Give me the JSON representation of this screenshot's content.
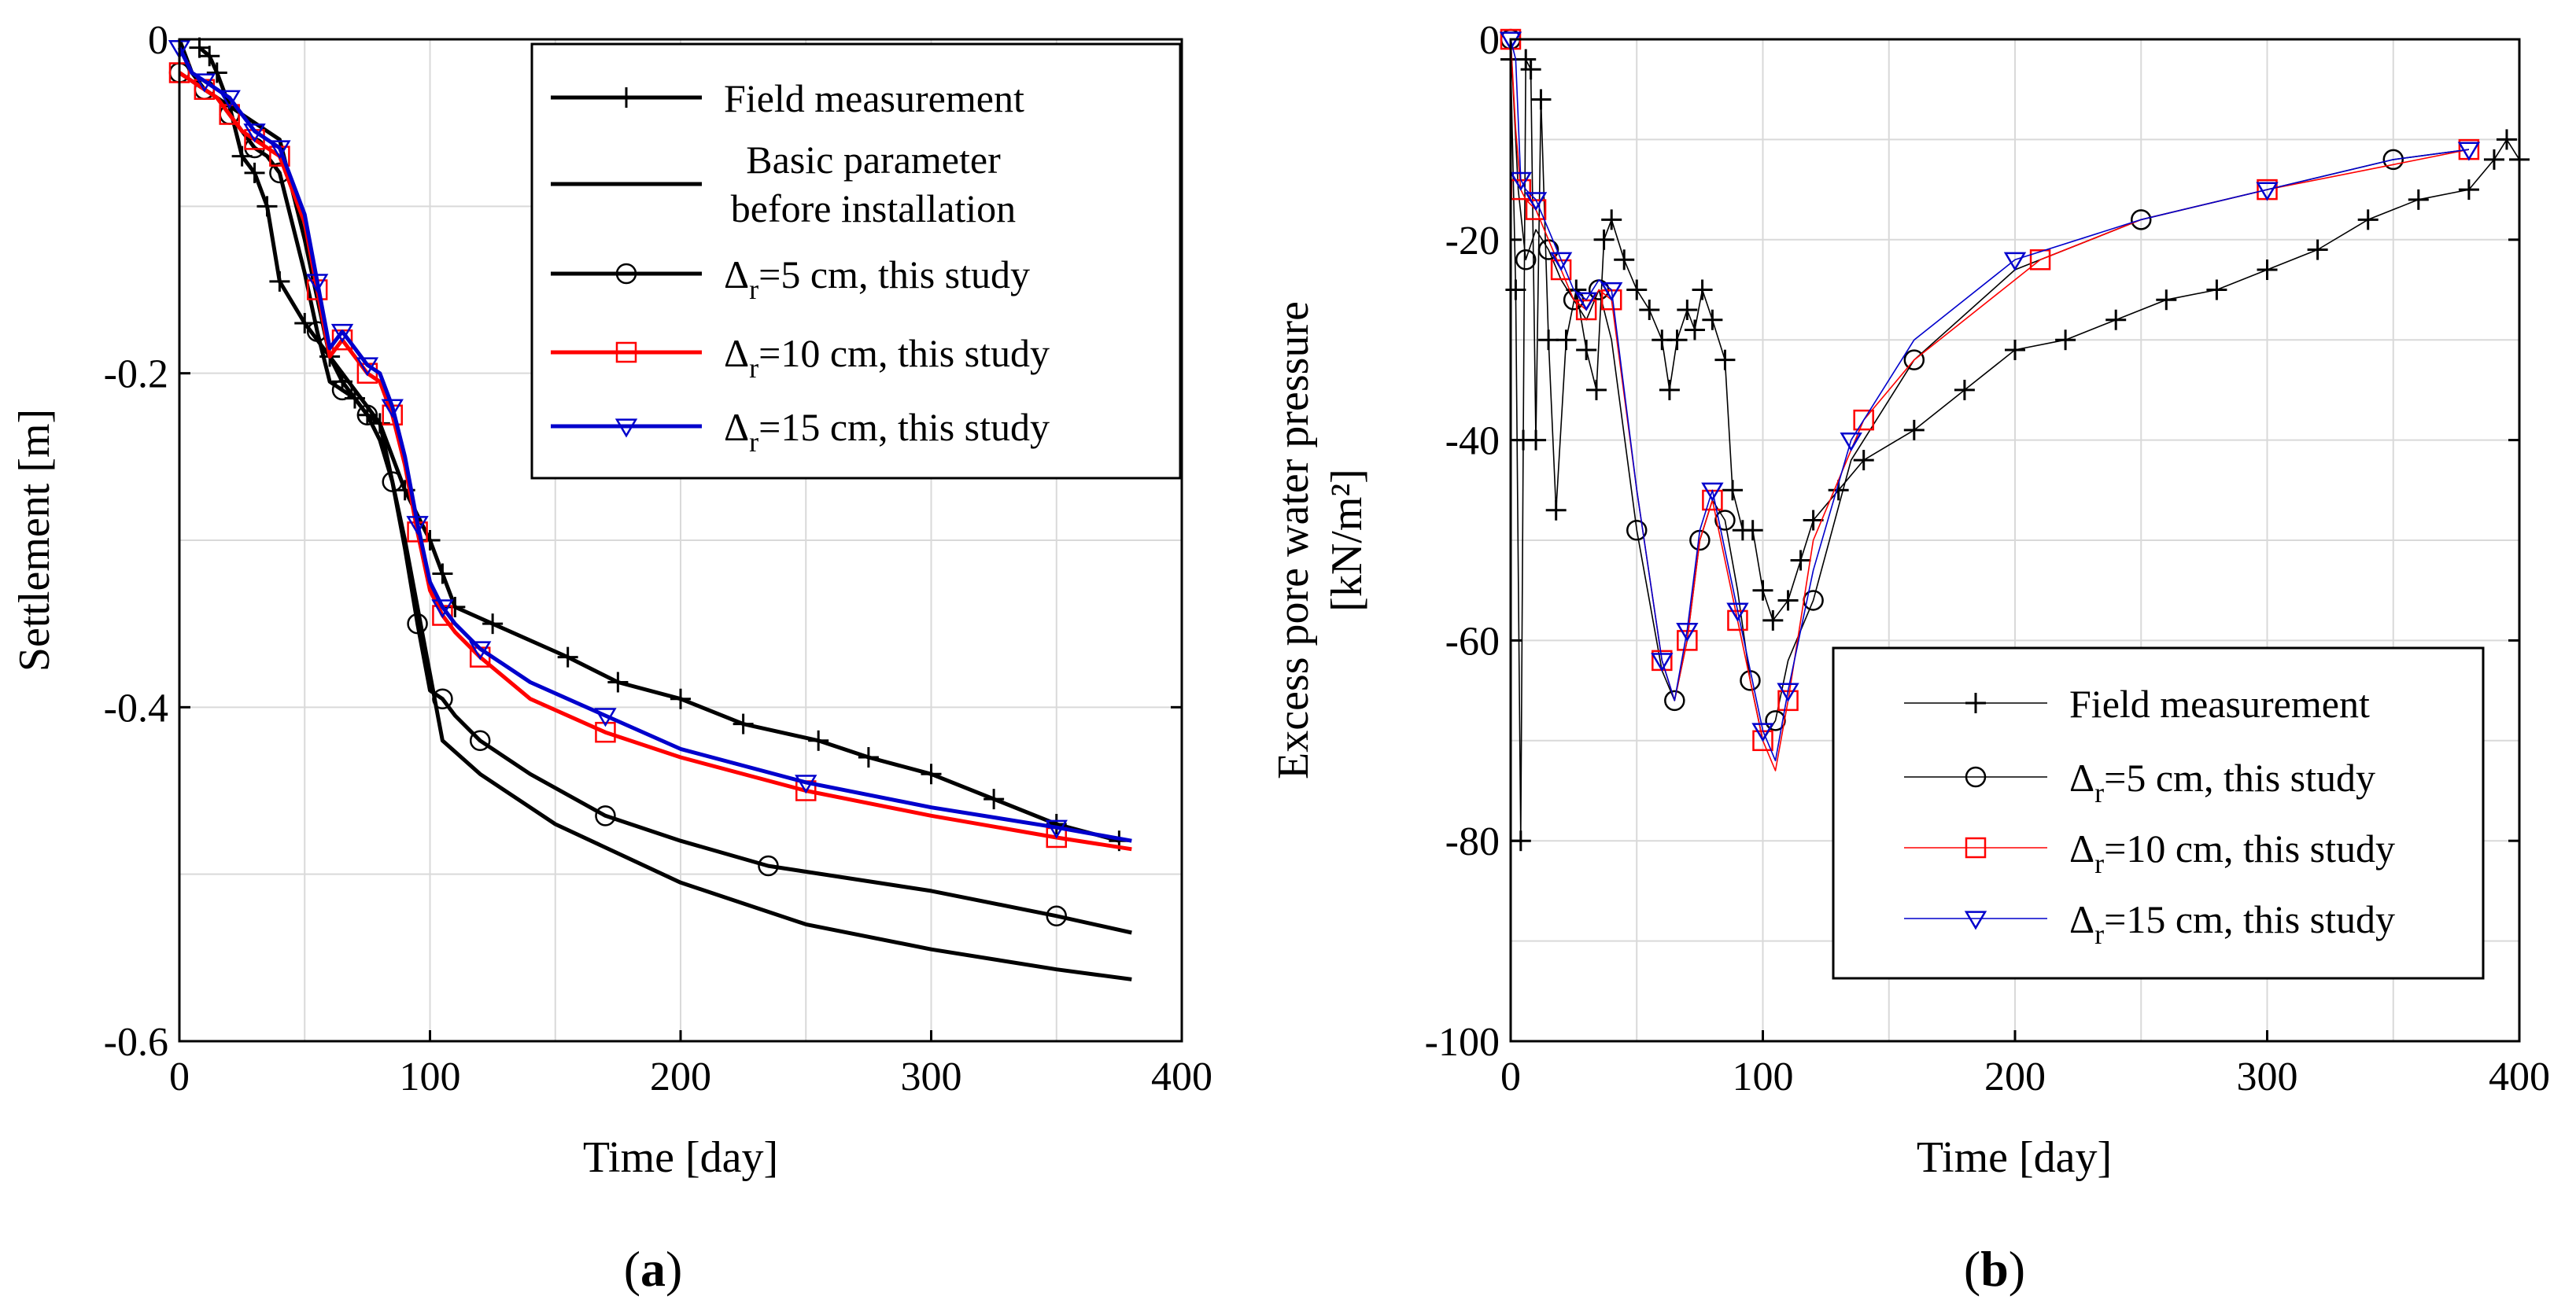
{
  "chart_data": [
    {
      "type": "line",
      "panel_label": "a",
      "xlabel": "Time [day]",
      "ylabel": "Settlement [m]",
      "xlim": [
        0,
        400
      ],
      "ylim": [
        -0.6,
        0
      ],
      "xticks": [
        "0",
        "100",
        "200",
        "300",
        "400"
      ],
      "yticks": [
        "0",
        "-0.2",
        "-0.4",
        "-0.6"
      ],
      "grid": true,
      "legend_position": "top-right",
      "legend_labels": {
        "field": "Field measurement",
        "basic_1": "Basic parameter",
        "basic_2": "before installation",
        "d5": "=5 cm, this study",
        "d10": "=10 cm, this study",
        "d15": "=15 cm, this study"
      },
      "delta_symbol": "Δ",
      "delta_sub": "r",
      "series": [
        {
          "key": "field",
          "color": "#000000",
          "marker": "plus",
          "x": [
            8,
            12,
            15,
            20,
            25,
            30,
            35,
            40,
            50,
            60,
            65,
            70,
            75,
            80,
            90,
            100,
            105,
            110,
            125,
            155,
            175,
            200,
            225,
            255,
            275,
            300,
            325,
            350,
            375
          ],
          "y": [
            -0.005,
            -0.01,
            -0.02,
            -0.04,
            -0.07,
            -0.08,
            -0.1,
            -0.145,
            -0.17,
            -0.19,
            -0.205,
            -0.215,
            -0.225,
            -0.23,
            -0.27,
            -0.3,
            -0.32,
            -0.34,
            -0.35,
            -0.37,
            -0.385,
            -0.395,
            -0.41,
            -0.42,
            -0.43,
            -0.44,
            -0.455,
            -0.47,
            -0.48
          ]
        },
        {
          "key": "basic",
          "color": "#000000",
          "marker": "none",
          "x": [
            0,
            5,
            10,
            20,
            30,
            40,
            50,
            60,
            70,
            80,
            90,
            100,
            105,
            120,
            150,
            200,
            250,
            300,
            350,
            380
          ],
          "y": [
            0,
            -0.02,
            -0.03,
            -0.04,
            -0.05,
            -0.06,
            -0.12,
            -0.19,
            -0.21,
            -0.23,
            -0.3,
            -0.38,
            -0.42,
            -0.44,
            -0.47,
            -0.505,
            -0.53,
            -0.545,
            -0.557,
            -0.563
          ]
        },
        {
          "key": "d5",
          "color": "#000000",
          "marker": "circle",
          "x": [
            0,
            5,
            10,
            15,
            20,
            25,
            30,
            35,
            40,
            50,
            55,
            60,
            65,
            70,
            75,
            80,
            85,
            90,
            95,
            100,
            105,
            110,
            120,
            140,
            170,
            200,
            235,
            300,
            350,
            380
          ],
          "y": [
            -0.02,
            -0.025,
            -0.03,
            -0.035,
            -0.045,
            -0.055,
            -0.065,
            -0.07,
            -0.08,
            -0.14,
            -0.175,
            -0.205,
            -0.21,
            -0.215,
            -0.225,
            -0.24,
            -0.265,
            -0.305,
            -0.35,
            -0.39,
            -0.395,
            -0.405,
            -0.42,
            -0.44,
            -0.465,
            -0.48,
            -0.495,
            -0.51,
            -0.525,
            -0.535
          ]
        },
        {
          "key": "d10",
          "color": "#ff0000",
          "marker": "square",
          "x": [
            0,
            5,
            10,
            15,
            20,
            25,
            30,
            35,
            40,
            50,
            55,
            60,
            65,
            70,
            75,
            80,
            85,
            90,
            95,
            100,
            105,
            110,
            120,
            140,
            170,
            200,
            250,
            300,
            350,
            380
          ],
          "y": [
            -0.02,
            -0.025,
            -0.03,
            -0.035,
            -0.045,
            -0.055,
            -0.06,
            -0.065,
            -0.07,
            -0.11,
            -0.15,
            -0.19,
            -0.18,
            -0.19,
            -0.2,
            -0.205,
            -0.225,
            -0.255,
            -0.295,
            -0.33,
            -0.345,
            -0.355,
            -0.37,
            -0.395,
            -0.415,
            -0.43,
            -0.45,
            -0.465,
            -0.478,
            -0.485
          ]
        },
        {
          "key": "d15",
          "color": "#0000cc",
          "marker": "triangle",
          "x": [
            0,
            5,
            10,
            15,
            20,
            25,
            30,
            35,
            40,
            50,
            55,
            60,
            65,
            70,
            75,
            80,
            85,
            90,
            95,
            100,
            105,
            110,
            120,
            140,
            170,
            200,
            250,
            300,
            350,
            380
          ],
          "y": [
            -0.005,
            -0.02,
            -0.025,
            -0.03,
            -0.035,
            -0.045,
            -0.055,
            -0.06,
            -0.065,
            -0.105,
            -0.145,
            -0.185,
            -0.175,
            -0.185,
            -0.195,
            -0.2,
            -0.22,
            -0.25,
            -0.29,
            -0.325,
            -0.34,
            -0.35,
            -0.365,
            -0.385,
            -0.405,
            -0.425,
            -0.445,
            -0.46,
            -0.472,
            -0.48
          ]
        }
      ]
    },
    {
      "type": "line",
      "panel_label": "b",
      "xlabel": "Time [day]",
      "ylabel_line1": "Excess pore water pressure",
      "ylabel_line2": "[kN/m²]",
      "xlim": [
        0,
        400
      ],
      "ylim": [
        -100,
        0
      ],
      "xticks": [
        "0",
        "100",
        "200",
        "300",
        "400"
      ],
      "yticks": [
        "0",
        "-20",
        "-40",
        "-60",
        "-80",
        "-100"
      ],
      "grid": true,
      "legend_position": "bottom-right",
      "legend_labels": {
        "field": "Field measurement",
        "d5": "=5 cm, this study",
        "d10": "=10 cm, this study",
        "d15": "=15 cm, this study"
      },
      "delta_symbol": "Δ",
      "delta_sub": "r",
      "series": [
        {
          "key": "field",
          "color": "#000000",
          "marker": "plus",
          "x": [
            0,
            2,
            4,
            5,
            6,
            8,
            10,
            12,
            15,
            18,
            22,
            26,
            30,
            34,
            37,
            40,
            45,
            50,
            55,
            60,
            63,
            66,
            70,
            73,
            76,
            80,
            85,
            88,
            92,
            96,
            100,
            104,
            110,
            115,
            120,
            130,
            140,
            160,
            180,
            200,
            220,
            240,
            260,
            280,
            300,
            320,
            340,
            360,
            380,
            390,
            395,
            400
          ],
          "y": [
            -2,
            -25,
            -80,
            -40,
            -2,
            -3,
            -40,
            -6,
            -30,
            -47,
            -30,
            -25,
            -31,
            -35,
            -20,
            -18,
            -22,
            -25,
            -27,
            -30,
            -35,
            -30,
            -27,
            -29,
            -25,
            -28,
            -32,
            -45,
            -49,
            -49,
            -55,
            -58,
            -56,
            -52,
            -48,
            -45,
            -42,
            -39,
            -35,
            -31,
            -30,
            -28,
            -26,
            -25,
            -23,
            -21,
            -18,
            -16,
            -15,
            -12,
            -10,
            -12
          ]
        },
        {
          "key": "d5",
          "color": "#000000",
          "marker": "circle",
          "x": [
            0,
            3,
            6,
            10,
            15,
            20,
            25,
            30,
            35,
            40,
            50,
            60,
            65,
            70,
            75,
            80,
            85,
            90,
            95,
            100,
            105,
            110,
            120,
            135,
            160,
            200,
            250,
            300,
            350,
            380
          ],
          "y": [
            0,
            -15,
            -22,
            -19,
            -21,
            -24,
            -26,
            -28,
            -25,
            -30,
            -49,
            -63,
            -66,
            -60,
            -50,
            -46,
            -48,
            -55,
            -64,
            -70,
            -68,
            -62,
            -56,
            -42,
            -32,
            -23,
            -18,
            -15,
            -12,
            -11
          ]
        },
        {
          "key": "d10",
          "color": "#ff0000",
          "marker": "square",
          "x": [
            0,
            2,
            4,
            6,
            10,
            15,
            20,
            25,
            30,
            35,
            40,
            50,
            60,
            65,
            70,
            75,
            80,
            85,
            90,
            95,
            100,
            105,
            110,
            120,
            140,
            160,
            210,
            250,
            300,
            350,
            380
          ],
          "y": [
            0,
            -9,
            -15,
            -16,
            -17,
            -20,
            -23,
            -26,
            -27,
            -25,
            -26,
            -45,
            -62,
            -66,
            -60,
            -50,
            -46,
            -52,
            -58,
            -64,
            -70,
            -73,
            -66,
            -50,
            -38,
            -32,
            -22,
            -18,
            -15,
            -12.5,
            -11
          ]
        },
        {
          "key": "d15",
          "color": "#0000cc",
          "marker": "triangle",
          "x": [
            0,
            2,
            4,
            6,
            10,
            15,
            20,
            25,
            30,
            35,
            40,
            50,
            60,
            65,
            70,
            75,
            80,
            85,
            90,
            95,
            100,
            105,
            110,
            120,
            135,
            160,
            200,
            250,
            300,
            350,
            380
          ],
          "y": [
            0,
            -2,
            -14,
            -15,
            -16,
            -19,
            -22,
            -25,
            -26,
            -24,
            -25,
            -45,
            -62,
            -66,
            -59,
            -49,
            -45,
            -51,
            -57,
            -63,
            -69,
            -72,
            -65,
            -53,
            -40,
            -30,
            -22,
            -18,
            -15,
            -12,
            -11
          ]
        }
      ]
    }
  ]
}
